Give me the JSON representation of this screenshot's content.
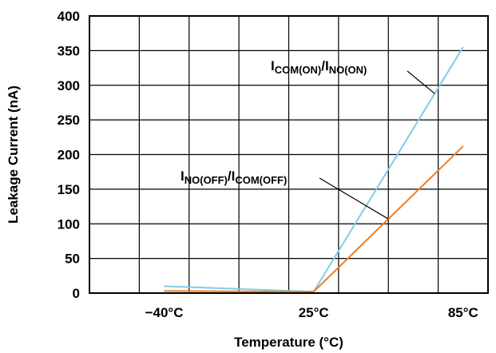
{
  "chart_data": {
    "type": "line",
    "title": "",
    "xlabel": "Temperature (°C)",
    "ylabel": "Leakage Current (nA)",
    "categories": [
      "−40°C",
      "25°C",
      "85°C"
    ],
    "ylim": [
      0,
      400
    ],
    "yticks": [
      0,
      50,
      100,
      150,
      200,
      250,
      300,
      350,
      400
    ],
    "grid": true,
    "series": [
      {
        "key": "on",
        "color": "#7fcde6",
        "values": [
          10,
          2,
          355
        ]
      },
      {
        "key": "off",
        "color": "#f07c22",
        "values": [
          3,
          2,
          212
        ]
      }
    ],
    "annotations": [
      {
        "series": "on",
        "parts": [
          {
            "text": "I",
            "sub": false
          },
          {
            "text": "COM(ON)",
            "sub": true
          },
          {
            "text": "/I",
            "sub": false
          },
          {
            "text": "NO(ON)",
            "sub": true
          }
        ]
      },
      {
        "series": "off",
        "parts": [
          {
            "text": "I",
            "sub": false
          },
          {
            "text": "NO(OFF)",
            "sub": true
          },
          {
            "text": "/I",
            "sub": false
          },
          {
            "text": "COM(OFF)",
            "sub": true
          }
        ]
      }
    ]
  }
}
